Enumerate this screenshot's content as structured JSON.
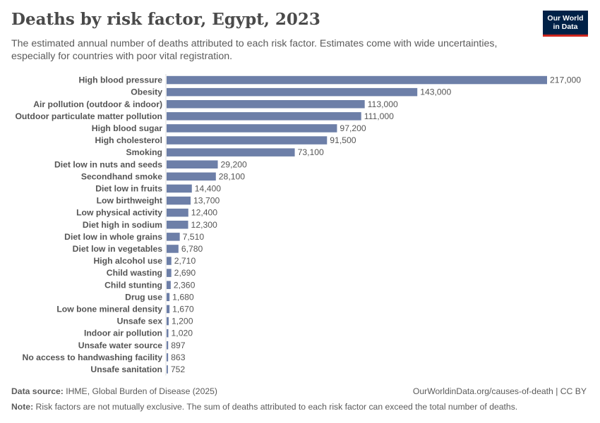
{
  "header": {
    "title": "Deaths by risk factor, Egypt, 2023",
    "subtitle": "The estimated annual number of deaths attributed to each risk factor. Estimates come with wide uncertainties, especially for countries with poor vital registration."
  },
  "logo": {
    "line1": "Our World",
    "line2": "in Data"
  },
  "footer": {
    "source_label": "Data source:",
    "source_text": "IHME, Global Burden of Disease (2025)",
    "url_license": "OurWorldinData.org/causes-of-death | CC BY",
    "note_label": "Note:",
    "note_text": "Risk factors are not mutually exclusive. The sum of deaths attributed to each risk factor can exceed the total number of deaths."
  },
  "colors": {
    "bar": "#6d7fa8",
    "logo_bg": "#002147",
    "logo_accent": "#ce261e"
  },
  "chart_data": {
    "type": "bar",
    "orientation": "horizontal",
    "title": "Deaths by risk factor, Egypt, 2023",
    "categories": [
      "High blood pressure",
      "Obesity",
      "Air pollution (outdoor & indoor)",
      "Outdoor particulate matter pollution",
      "High blood sugar",
      "High cholesterol",
      "Smoking",
      "Diet low in nuts and seeds",
      "Secondhand smoke",
      "Diet low in fruits",
      "Low birthweight",
      "Low physical activity",
      "Diet high in sodium",
      "Diet low in whole grains",
      "Diet low in vegetables",
      "High alcohol use",
      "Child wasting",
      "Child stunting",
      "Drug use",
      "Low bone mineral density",
      "Unsafe sex",
      "Indoor air pollution",
      "Unsafe water source",
      "No access to handwashing facility",
      "Unsafe sanitation"
    ],
    "values": [
      217000,
      143000,
      113000,
      111000,
      97200,
      91500,
      73100,
      29200,
      28100,
      14400,
      13700,
      12400,
      12300,
      7510,
      6780,
      2710,
      2690,
      2360,
      1680,
      1670,
      1200,
      1020,
      897,
      863,
      752
    ],
    "value_labels": [
      "217,000",
      "143,000",
      "113,000",
      "111,000",
      "97,200",
      "91,500",
      "73,100",
      "29,200",
      "28,100",
      "14,400",
      "13,700",
      "12,400",
      "12,300",
      "7,510",
      "6,780",
      "2,710",
      "2,690",
      "2,360",
      "1,680",
      "1,670",
      "1,200",
      "1,020",
      "897",
      "863",
      "752"
    ],
    "xlim": [
      0,
      217000
    ],
    "grid": false,
    "legend": "none"
  }
}
